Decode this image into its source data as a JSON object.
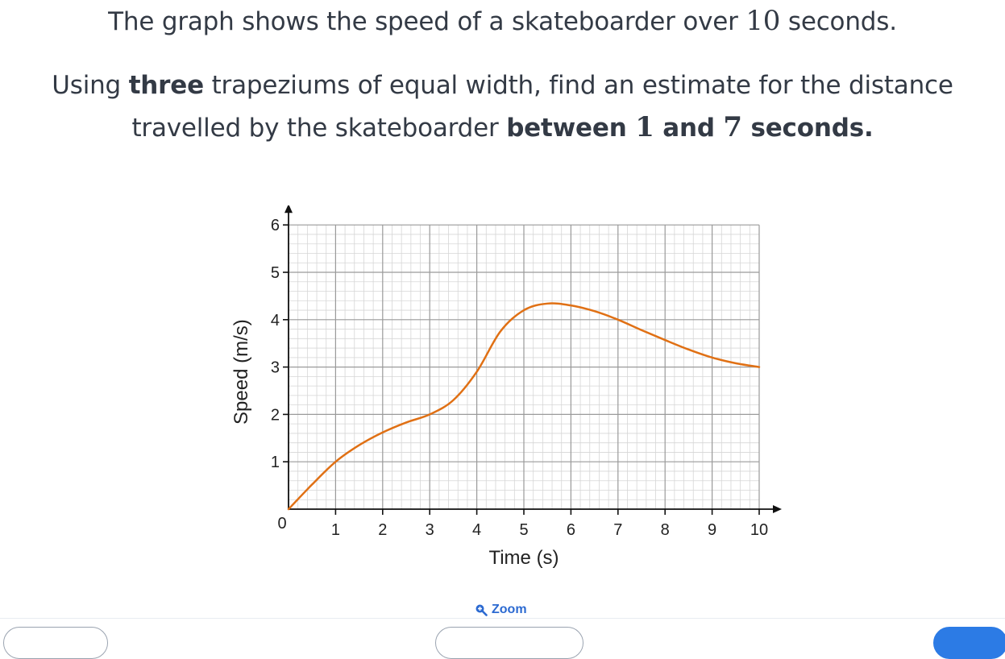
{
  "question": {
    "line1": {
      "a": "The graph shows the speed of a skateboarder over ",
      "n": "10",
      "b": " seconds."
    },
    "line2": {
      "a": "Using ",
      "bold": "three",
      "b": " trapeziums of equal width, find an estimate for the distance"
    },
    "line3": {
      "a": "travelled by the skateboarder ",
      "b1": "between ",
      "n1": "1",
      "b2": " and ",
      "n2": "7",
      "b3": " seconds."
    }
  },
  "zoom_label": "Zoom",
  "colors": {
    "curve": "#e07014",
    "grid_major": "#9a9a9a",
    "grid_minor": "#d6d6d6",
    "axis": "#111111",
    "link": "#2c6ad1"
  },
  "chart_data": {
    "type": "line",
    "title": "",
    "xlabel": "Time (s)",
    "ylabel": "Speed (m/s)",
    "xlim": [
      0,
      10
    ],
    "ylim": [
      0,
      6
    ],
    "origin_label": "0",
    "x_ticks": [
      "1",
      "2",
      "3",
      "4",
      "5",
      "6",
      "7",
      "8",
      "9",
      "10"
    ],
    "y_ticks": [
      "1",
      "2",
      "3",
      "4",
      "5",
      "6"
    ],
    "grid": true,
    "minor_per_unit": 5,
    "series": [
      {
        "x": [
          0,
          0.5,
          1,
          1.5,
          2,
          2.5,
          3,
          3.5,
          4,
          4.5,
          5,
          5.5,
          6,
          6.5,
          7,
          7.5,
          8,
          8.5,
          9,
          9.5,
          10
        ],
        "y": [
          0,
          0.52,
          1.0,
          1.35,
          1.62,
          1.83,
          2.0,
          2.3,
          2.9,
          3.75,
          4.2,
          4.34,
          4.3,
          4.18,
          4.0,
          3.78,
          3.57,
          3.37,
          3.2,
          3.08,
          3.0
        ]
      }
    ]
  }
}
